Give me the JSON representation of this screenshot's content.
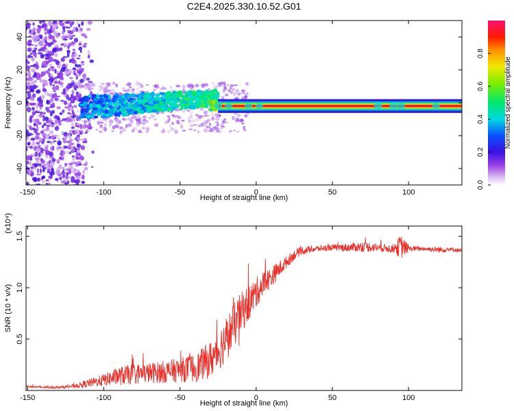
{
  "figure": {
    "title": "C2E4.2025.330.10.52.G01"
  },
  "chart_data": [
    {
      "type": "heatmap",
      "name": "spectrogram",
      "xlabel": "Height of straight line (km)",
      "ylabel": "Frequency (Hz)",
      "xlim": [
        -151,
        135
      ],
      "ylim": [
        -50,
        50
      ],
      "xticks": [
        -150,
        -100,
        -50,
        0,
        50,
        100
      ],
      "xtick_labels": [
        "-150",
        "-100",
        "-50",
        "0",
        "50",
        "100"
      ],
      "yticks": [
        -40,
        -20,
        0,
        20,
        40
      ],
      "ytick_labels": [
        "-40",
        "-20",
        "0",
        "20",
        "40"
      ],
      "colorbar": {
        "label": "Normalized spectral amplitude",
        "range": [
          0,
          1
        ],
        "ticks": [
          0.0,
          0.2,
          0.4,
          0.6,
          0.8
        ],
        "tick_labels": [
          "0.0",
          "0.2",
          "0.4",
          "0.6",
          "0.8"
        ]
      },
      "features": {
        "noise_region_x": [
          -151,
          -115
        ],
        "dispersed_band_x": [
          -115,
          -25
        ],
        "narrow_band_x": [
          -25,
          135
        ],
        "narrow_band_frequency_hz": -2,
        "band_peak_amplitude": 0.95
      }
    },
    {
      "type": "line",
      "name": "snr",
      "xlabel": "Height of straight line (km)",
      "ylabel": "SNR (10 * v/v)",
      "y_scale_note": "(x10⁴)",
      "xlim": [
        -151,
        135
      ],
      "ylim": [
        0,
        1.6
      ],
      "xticks": [
        -150,
        -100,
        -50,
        0,
        50,
        100
      ],
      "xtick_labels": [
        "-150",
        "-100",
        "-50",
        "0",
        "50",
        "100"
      ],
      "yticks": [
        0.5,
        1.0,
        1.5
      ],
      "ytick_labels": [
        "0.5",
        "1.0",
        "1.5"
      ],
      "color": "#e8302a",
      "series": [
        {
          "name": "SNR",
          "x": [
            -151,
            -140,
            -130,
            -120,
            -110,
            -100,
            -90,
            -80,
            -70,
            -60,
            -50,
            -40,
            -30,
            -25,
            -20,
            -15,
            -10,
            -5,
            0,
            5,
            10,
            15,
            20,
            25,
            30,
            40,
            50,
            60,
            70,
            80,
            90,
            95,
            100,
            110,
            120,
            130,
            135
          ],
          "y": [
            0.04,
            0.03,
            0.03,
            0.04,
            0.07,
            0.1,
            0.14,
            0.16,
            0.17,
            0.18,
            0.2,
            0.22,
            0.3,
            0.38,
            0.5,
            0.62,
            0.75,
            0.85,
            0.95,
            1.05,
            1.1,
            1.18,
            1.25,
            1.32,
            1.36,
            1.38,
            1.39,
            1.39,
            1.4,
            1.39,
            1.38,
            1.4,
            1.38,
            1.38,
            1.37,
            1.37,
            1.36
          ],
          "noise_amplitude": [
            0.01,
            0.01,
            0.01,
            0.02,
            0.04,
            0.06,
            0.09,
            0.1,
            0.1,
            0.11,
            0.12,
            0.14,
            0.18,
            0.2,
            0.22,
            0.22,
            0.2,
            0.18,
            0.15,
            0.12,
            0.1,
            0.08,
            0.06,
            0.05,
            0.04,
            0.03,
            0.03,
            0.04,
            0.05,
            0.04,
            0.04,
            0.12,
            0.03,
            0.02,
            0.03,
            0.02,
            0.02
          ]
        }
      ]
    }
  ]
}
